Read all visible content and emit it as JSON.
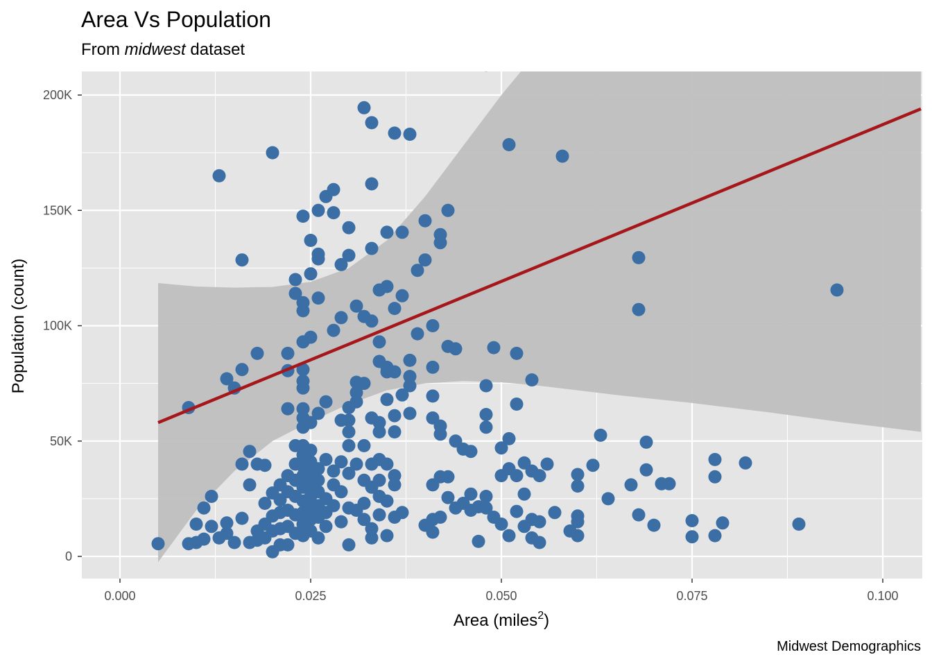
{
  "chart_data": {
    "type": "scatter",
    "title": "Area Vs Population",
    "subtitle_prefix": "From ",
    "subtitle_emph": "midwest",
    "subtitle_suffix": " dataset",
    "caption": "Midwest Demographics",
    "xlabel": "Area (miles",
    "xlabel_sup": "2",
    "xlabel_suffix": ")",
    "ylabel": "Population (count)",
    "xlim": [
      -0.0025,
      0.105
    ],
    "ylim": [
      -10000,
      210000
    ],
    "x_ticks": [
      0.0,
      0.025,
      0.05,
      0.075,
      0.1
    ],
    "x_tick_labels": [
      "0.000",
      "0.025",
      "0.050",
      "0.075",
      "0.100"
    ],
    "y_ticks": [
      0,
      50000,
      100000,
      150000,
      200000
    ],
    "y_tick_labels": [
      "0",
      "50K",
      "100K",
      "150K",
      "200K"
    ],
    "grid": true,
    "legend": "none",
    "colors": {
      "points": "#3a6ea5",
      "fit_line": "#a6171c",
      "ribbon": "#bfbfbf",
      "panel": "#e5e5e5",
      "grid": "#ffffff"
    },
    "fit": {
      "method": "lm",
      "line": [
        [
          0.005,
          58000
        ],
        [
          0.105,
          194000
        ]
      ],
      "ribbon_upper": [
        [
          0.005,
          118500
        ],
        [
          0.01,
          117000
        ],
        [
          0.015,
          116500
        ],
        [
          0.02,
          116800
        ],
        [
          0.025,
          119000
        ],
        [
          0.03,
          125000
        ],
        [
          0.035,
          137000
        ],
        [
          0.04,
          156000
        ],
        [
          0.045,
          178000
        ],
        [
          0.05,
          200000
        ],
        [
          0.055,
          220000
        ],
        [
          0.065,
          255000
        ],
        [
          0.08,
          300000
        ],
        [
          0.105,
          370000
        ]
      ],
      "ribbon_lower": [
        [
          0.005,
          -2500
        ],
        [
          0.01,
          20000
        ],
        [
          0.015,
          37000
        ],
        [
          0.02,
          50000
        ],
        [
          0.025,
          58500
        ],
        [
          0.03,
          66000
        ],
        [
          0.035,
          72000
        ],
        [
          0.04,
          75000
        ],
        [
          0.045,
          76000
        ],
        [
          0.05,
          75500
        ],
        [
          0.055,
          74000
        ],
        [
          0.065,
          70000
        ],
        [
          0.075,
          66500
        ],
        [
          0.085,
          62500
        ],
        [
          0.095,
          58000
        ],
        [
          0.105,
          54000
        ]
      ]
    },
    "points": [
      [
        0.005,
        5500
      ],
      [
        0.009,
        5500
      ],
      [
        0.009,
        64500
      ],
      [
        0.01,
        6000
      ],
      [
        0.01,
        14000
      ],
      [
        0.011,
        7500
      ],
      [
        0.011,
        21000
      ],
      [
        0.012,
        26000
      ],
      [
        0.012,
        13000
      ],
      [
        0.013,
        8000
      ],
      [
        0.013,
        165000
      ],
      [
        0.014,
        77000
      ],
      [
        0.014,
        14500
      ],
      [
        0.014,
        10000
      ],
      [
        0.015,
        73000
      ],
      [
        0.015,
        6000
      ],
      [
        0.016,
        16500
      ],
      [
        0.016,
        40000
      ],
      [
        0.016,
        81000
      ],
      [
        0.016,
        128500
      ],
      [
        0.017,
        45500
      ],
      [
        0.017,
        31000
      ],
      [
        0.017,
        6000
      ],
      [
        0.018,
        88000
      ],
      [
        0.018,
        40000
      ],
      [
        0.018,
        11000
      ],
      [
        0.018,
        7000
      ],
      [
        0.019,
        39500
      ],
      [
        0.019,
        23000
      ],
      [
        0.019,
        14000
      ],
      [
        0.019,
        8000
      ],
      [
        0.02,
        175000
      ],
      [
        0.02,
        27500
      ],
      [
        0.02,
        17500
      ],
      [
        0.02,
        11000
      ],
      [
        0.02,
        2000
      ],
      [
        0.021,
        31000
      ],
      [
        0.021,
        24500
      ],
      [
        0.021,
        19000
      ],
      [
        0.021,
        12000
      ],
      [
        0.021,
        5000
      ],
      [
        0.022,
        88000
      ],
      [
        0.022,
        80500
      ],
      [
        0.022,
        64000
      ],
      [
        0.022,
        35000
      ],
      [
        0.022,
        28000
      ],
      [
        0.022,
        20000
      ],
      [
        0.022,
        13000
      ],
      [
        0.022,
        5000
      ],
      [
        0.023,
        120000
      ],
      [
        0.023,
        114000
      ],
      [
        0.023,
        48000
      ],
      [
        0.023,
        40000
      ],
      [
        0.023,
        33000
      ],
      [
        0.023,
        26000
      ],
      [
        0.023,
        18000
      ],
      [
        0.023,
        10000
      ],
      [
        0.024,
        147500
      ],
      [
        0.024,
        110000
      ],
      [
        0.024,
        106500
      ],
      [
        0.024,
        93000
      ],
      [
        0.024,
        81000
      ],
      [
        0.024,
        76000
      ],
      [
        0.024,
        73000
      ],
      [
        0.024,
        64000
      ],
      [
        0.024,
        60000
      ],
      [
        0.024,
        56000
      ],
      [
        0.024,
        48000
      ],
      [
        0.024,
        44000
      ],
      [
        0.024,
        39000
      ],
      [
        0.024,
        35000
      ],
      [
        0.024,
        30000
      ],
      [
        0.024,
        24000
      ],
      [
        0.024,
        19000
      ],
      [
        0.024,
        14000
      ],
      [
        0.024,
        9000
      ],
      [
        0.025,
        137000
      ],
      [
        0.025,
        122500
      ],
      [
        0.025,
        95000
      ],
      [
        0.025,
        58000
      ],
      [
        0.025,
        46000
      ],
      [
        0.025,
        41000
      ],
      [
        0.025,
        36000
      ],
      [
        0.025,
        31000
      ],
      [
        0.025,
        26000
      ],
      [
        0.025,
        21000
      ],
      [
        0.025,
        16000
      ],
      [
        0.025,
        11000
      ],
      [
        0.026,
        150000
      ],
      [
        0.026,
        131000
      ],
      [
        0.026,
        129000
      ],
      [
        0.026,
        112000
      ],
      [
        0.026,
        62000
      ],
      [
        0.026,
        38000
      ],
      [
        0.026,
        33000
      ],
      [
        0.026,
        28000
      ],
      [
        0.026,
        22000
      ],
      [
        0.026,
        17000
      ],
      [
        0.026,
        8000
      ],
      [
        0.027,
        156000
      ],
      [
        0.027,
        67000
      ],
      [
        0.027,
        42000
      ],
      [
        0.027,
        25000
      ],
      [
        0.027,
        19000
      ],
      [
        0.027,
        13000
      ],
      [
        0.028,
        159000
      ],
      [
        0.028,
        149000
      ],
      [
        0.028,
        98000
      ],
      [
        0.028,
        37000
      ],
      [
        0.028,
        31000
      ],
      [
        0.028,
        22000
      ],
      [
        0.029,
        126500
      ],
      [
        0.029,
        103500
      ],
      [
        0.029,
        59000
      ],
      [
        0.029,
        41000
      ],
      [
        0.029,
        28000
      ],
      [
        0.029,
        15000
      ],
      [
        0.03,
        142500
      ],
      [
        0.03,
        130500
      ],
      [
        0.03,
        64500
      ],
      [
        0.03,
        59000
      ],
      [
        0.03,
        54000
      ],
      [
        0.03,
        48000
      ],
      [
        0.03,
        36000
      ],
      [
        0.03,
        21000
      ],
      [
        0.03,
        5000
      ],
      [
        0.031,
        108500
      ],
      [
        0.031,
        75500
      ],
      [
        0.031,
        71000
      ],
      [
        0.031,
        67000
      ],
      [
        0.031,
        40000
      ],
      [
        0.031,
        20000
      ],
      [
        0.032,
        194500
      ],
      [
        0.032,
        104000
      ],
      [
        0.032,
        75000
      ],
      [
        0.032,
        48000
      ],
      [
        0.032,
        33000
      ],
      [
        0.032,
        23000
      ],
      [
        0.032,
        16000
      ],
      [
        0.033,
        188000
      ],
      [
        0.033,
        161500
      ],
      [
        0.033,
        133500
      ],
      [
        0.033,
        102000
      ],
      [
        0.033,
        60000
      ],
      [
        0.033,
        40000
      ],
      [
        0.033,
        30000
      ],
      [
        0.033,
        12000
      ],
      [
        0.033,
        8000
      ],
      [
        0.034,
        115500
      ],
      [
        0.034,
        93000
      ],
      [
        0.034,
        84500
      ],
      [
        0.034,
        58000
      ],
      [
        0.034,
        54000
      ],
      [
        0.034,
        42000
      ],
      [
        0.034,
        33000
      ],
      [
        0.034,
        26000
      ],
      [
        0.034,
        18000
      ],
      [
        0.035,
        140500
      ],
      [
        0.035,
        117000
      ],
      [
        0.035,
        82000
      ],
      [
        0.035,
        80000
      ],
      [
        0.035,
        68000
      ],
      [
        0.035,
        40000
      ],
      [
        0.035,
        24000
      ],
      [
        0.035,
        9000
      ],
      [
        0.036,
        183500
      ],
      [
        0.036,
        107500
      ],
      [
        0.036,
        80000
      ],
      [
        0.036,
        61000
      ],
      [
        0.036,
        54000
      ],
      [
        0.036,
        35000
      ],
      [
        0.036,
        31000
      ],
      [
        0.036,
        17000
      ],
      [
        0.037,
        140500
      ],
      [
        0.037,
        113000
      ],
      [
        0.037,
        70000
      ],
      [
        0.037,
        19000
      ],
      [
        0.038,
        183000
      ],
      [
        0.038,
        85000
      ],
      [
        0.038,
        78000
      ],
      [
        0.038,
        74000
      ],
      [
        0.038,
        62000
      ],
      [
        0.039,
        124000
      ],
      [
        0.039,
        96500
      ],
      [
        0.04,
        145500
      ],
      [
        0.04,
        128500
      ],
      [
        0.04,
        13500
      ],
      [
        0.041,
        100000
      ],
      [
        0.041,
        82000
      ],
      [
        0.041,
        69500
      ],
      [
        0.041,
        60000
      ],
      [
        0.041,
        31000
      ],
      [
        0.041,
        16000
      ],
      [
        0.041,
        10500
      ],
      [
        0.042,
        139500
      ],
      [
        0.042,
        136000
      ],
      [
        0.042,
        56500
      ],
      [
        0.042,
        53000
      ],
      [
        0.042,
        34500
      ],
      [
        0.042,
        17000
      ],
      [
        0.043,
        150000
      ],
      [
        0.043,
        91000
      ],
      [
        0.043,
        34500
      ],
      [
        0.043,
        25500
      ],
      [
        0.044,
        90000
      ],
      [
        0.044,
        50000
      ],
      [
        0.044,
        21000
      ],
      [
        0.045,
        46500
      ],
      [
        0.045,
        23000
      ],
      [
        0.046,
        45500
      ],
      [
        0.046,
        27000
      ],
      [
        0.046,
        20000
      ],
      [
        0.047,
        6500
      ],
      [
        0.047,
        21500
      ],
      [
        0.048,
        213000
      ],
      [
        0.048,
        74000
      ],
      [
        0.048,
        61500
      ],
      [
        0.048,
        56000
      ],
      [
        0.048,
        26000
      ],
      [
        0.048,
        21000
      ],
      [
        0.049,
        90500
      ],
      [
        0.049,
        17000
      ],
      [
        0.05,
        47000
      ],
      [
        0.05,
        35000
      ],
      [
        0.05,
        14000
      ],
      [
        0.051,
        178500
      ],
      [
        0.051,
        51000
      ],
      [
        0.051,
        38000
      ],
      [
        0.051,
        9000
      ],
      [
        0.052,
        88000
      ],
      [
        0.052,
        66000
      ],
      [
        0.052,
        35000
      ],
      [
        0.052,
        19500
      ],
      [
        0.053,
        40500
      ],
      [
        0.053,
        27000
      ],
      [
        0.053,
        13000
      ],
      [
        0.054,
        76500
      ],
      [
        0.054,
        37000
      ],
      [
        0.054,
        16000
      ],
      [
        0.054,
        8000
      ],
      [
        0.055,
        35000
      ],
      [
        0.055,
        15000
      ],
      [
        0.055,
        6000
      ],
      [
        0.056,
        40000
      ],
      [
        0.057,
        19000
      ],
      [
        0.058,
        173500
      ],
      [
        0.059,
        11000
      ],
      [
        0.06,
        35500
      ],
      [
        0.06,
        30500
      ],
      [
        0.06,
        17500
      ],
      [
        0.06,
        15000
      ],
      [
        0.06,
        9000
      ],
      [
        0.062,
        39500
      ],
      [
        0.063,
        52500
      ],
      [
        0.064,
        25000
      ],
      [
        0.067,
        31000
      ],
      [
        0.068,
        129500
      ],
      [
        0.068,
        107000
      ],
      [
        0.068,
        18000
      ],
      [
        0.069,
        49500
      ],
      [
        0.069,
        37500
      ],
      [
        0.07,
        13500
      ],
      [
        0.071,
        31500
      ],
      [
        0.072,
        31500
      ],
      [
        0.075,
        15500
      ],
      [
        0.075,
        8500
      ],
      [
        0.078,
        42000
      ],
      [
        0.078,
        34500
      ],
      [
        0.078,
        9000
      ],
      [
        0.079,
        14500
      ],
      [
        0.082,
        40500
      ],
      [
        0.089,
        14000
      ],
      [
        0.094,
        115500
      ]
    ]
  }
}
